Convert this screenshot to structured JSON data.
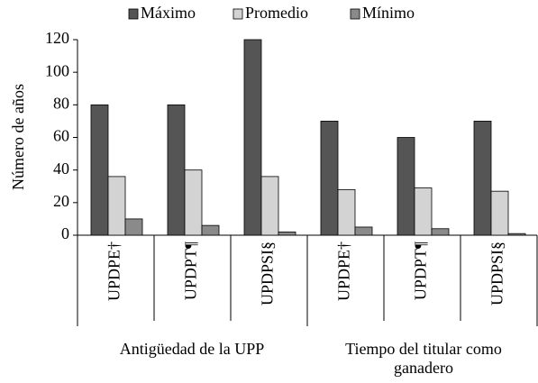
{
  "chart_data": {
    "type": "bar",
    "categories": [
      "UPDPE†",
      "UPDPT¶",
      "UPDPSI§",
      "UPDPE†",
      "UPDPT¶",
      "UPDPSI§"
    ],
    "group_labels": [
      "Antigüedad de la UPP",
      "Tiempo del titular como ganadero"
    ],
    "series": [
      {
        "name": "Máximo",
        "color": "#555555",
        "values": [
          80,
          80,
          120,
          70,
          60,
          70
        ]
      },
      {
        "name": "Promedio",
        "color": "#d3d3d3",
        "values": [
          36,
          40,
          36,
          28,
          29,
          27
        ]
      },
      {
        "name": "Mínimo",
        "color": "#8a8a8a",
        "values": [
          10,
          6,
          2,
          5,
          4,
          1
        ]
      }
    ],
    "y_label": "Número de años",
    "ylim": [
      0,
      120
    ],
    "yticks": [
      0,
      20,
      40,
      60,
      80,
      100,
      120
    ],
    "grid": false
  }
}
